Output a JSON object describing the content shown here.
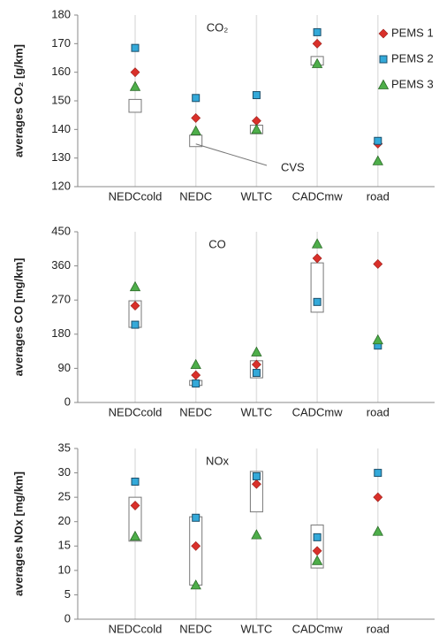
{
  "chart_data": [
    {
      "type": "scatter",
      "title": "CO₂",
      "y_label": "averages CO₂ [g/km]",
      "categories": [
        "NEDCcold",
        "NEDC",
        "WLTC",
        "CADCmw",
        "road"
      ],
      "series": [
        {
          "name": "PEMS 1",
          "color": "#d9302a",
          "marker": "diamond",
          "values": [
            160,
            144,
            143,
            170,
            135
          ]
        },
        {
          "name": "PEMS 2",
          "color": "#33a9d9",
          "marker": "square",
          "values": [
            168.5,
            151,
            152,
            174,
            136
          ]
        },
        {
          "name": "PEMS 3",
          "color": "#4eae4a",
          "marker": "triangle",
          "values": [
            155,
            139.5,
            140,
            163,
            129
          ]
        }
      ],
      "cvs": [
        [
          146,
          150.5
        ],
        [
          134,
          138
        ],
        [
          138.5,
          141.5
        ],
        [
          162.5,
          165.5
        ],
        null
      ],
      "annotation": "CVS",
      "ylim": [
        120,
        180
      ],
      "yticks": [
        120,
        130,
        140,
        150,
        160,
        170,
        180
      ],
      "grid": true,
      "legend": "upper right"
    },
    {
      "type": "scatter",
      "title": "CO",
      "y_label": "averages CO [mg/km]",
      "categories": [
        "NEDCcold",
        "NEDC",
        "WLTC",
        "CADCmw",
        "road"
      ],
      "series": [
        {
          "color": "#d9302a",
          "marker": "diamond",
          "values": [
            255,
            72,
            100,
            380,
            365
          ]
        },
        {
          "color": "#33a9d9",
          "marker": "square",
          "values": [
            205,
            50,
            78,
            265,
            150
          ]
        },
        {
          "color": "#4eae4a",
          "marker": "triangle",
          "values": [
            305,
            100,
            133,
            418,
            165
          ]
        }
      ],
      "cvs": [
        [
          198,
          268
        ],
        [
          45,
          58
        ],
        [
          65,
          110
        ],
        [
          238,
          368
        ],
        null
      ],
      "ylim": [
        0,
        450
      ],
      "yticks": [
        0,
        90,
        180,
        270,
        360,
        450
      ],
      "grid": true
    },
    {
      "type": "scatter",
      "title": "NOx",
      "y_label": "averages NOx [mg/km]",
      "categories": [
        "NEDCcold",
        "NEDC",
        "WLTC",
        "CADCmw",
        "road"
      ],
      "series": [
        {
          "color": "#d9302a",
          "marker": "diamond",
          "values": [
            23.3,
            15,
            27.7,
            14,
            25
          ]
        },
        {
          "color": "#33a9d9",
          "marker": "square",
          "values": [
            28.2,
            20.8,
            29.3,
            16.8,
            30
          ]
        },
        {
          "color": "#4eae4a",
          "marker": "triangle",
          "values": [
            17,
            7,
            17.3,
            12,
            18
          ]
        }
      ],
      "cvs": [
        [
          16,
          25
        ],
        [
          7,
          21
        ],
        [
          22,
          30.3
        ],
        [
          10.5,
          19.3
        ],
        null
      ],
      "ylim": [
        0,
        35
      ],
      "yticks": [
        0,
        5,
        10,
        15,
        20,
        25,
        30,
        35
      ],
      "grid": true
    }
  ]
}
